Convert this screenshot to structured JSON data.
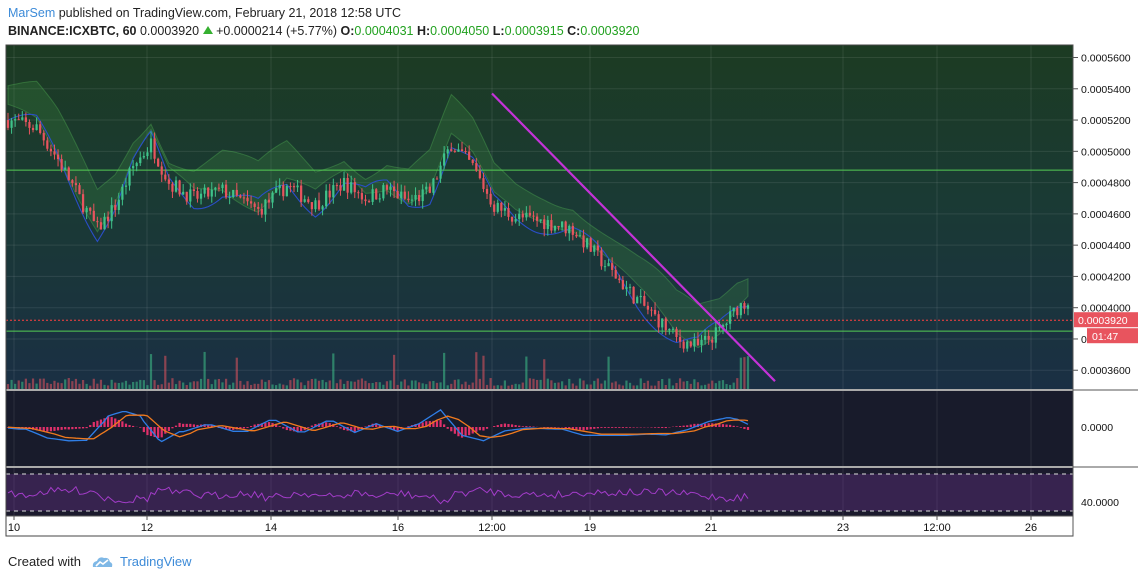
{
  "header": {
    "author": "MarSem",
    "published_text": "published on TradingView.com, February 21, 2018 12:58 UTC",
    "symbol": "BINANCE:ICXBTC, 60",
    "last_price": "0.0003920",
    "change": "+0.0000214 (+5.77%)",
    "ohlc": [
      {
        "label": "O:",
        "value": "0.0004031"
      },
      {
        "label": "H:",
        "value": "0.0004050"
      },
      {
        "label": "L:",
        "value": "0.0003915"
      },
      {
        "label": "C:",
        "value": "0.0003920"
      }
    ]
  },
  "footer": {
    "created_with": "Created with",
    "brand": "TradingView"
  },
  "colors": {
    "bull": "#3fc28a",
    "bear": "#e8545e",
    "trendline": "#c432d8",
    "hline": "#55cc55",
    "macd": "#2f7ee6",
    "signal": "#f07a1e",
    "rsi": "#a23cc8",
    "price_badge": "#e8545e",
    "price_dotted": "#ff4040"
  },
  "chart_data": {
    "type": "candlestick",
    "y_min": 0.000348,
    "y_max": 0.000568,
    "price_ticks": [
      "0.0005600",
      "0.0005400",
      "0.0005200",
      "0.0005000",
      "0.0004800",
      "0.0004600",
      "0.0004400",
      "0.0004200",
      "0.0004000",
      "0.0003800",
      "0.0003600"
    ],
    "last_price_label": "0.0003920",
    "countdown_label": "01:47",
    "time_labels": [
      "10",
      "12",
      "14",
      "16",
      "12:00",
      "19",
      "21",
      "23",
      "12:00",
      "26"
    ],
    "horizontal_lines": [
      0.000488,
      0.000385
    ],
    "trendline": {
      "start": {
        "index": 0,
        "price": 0.000537
      },
      "end": {
        "index": 1,
        "price": 0.000353
      }
    },
    "candles": [],
    "macd_axis_label": "0.0000",
    "rsi_axis_label": "40.0000"
  }
}
